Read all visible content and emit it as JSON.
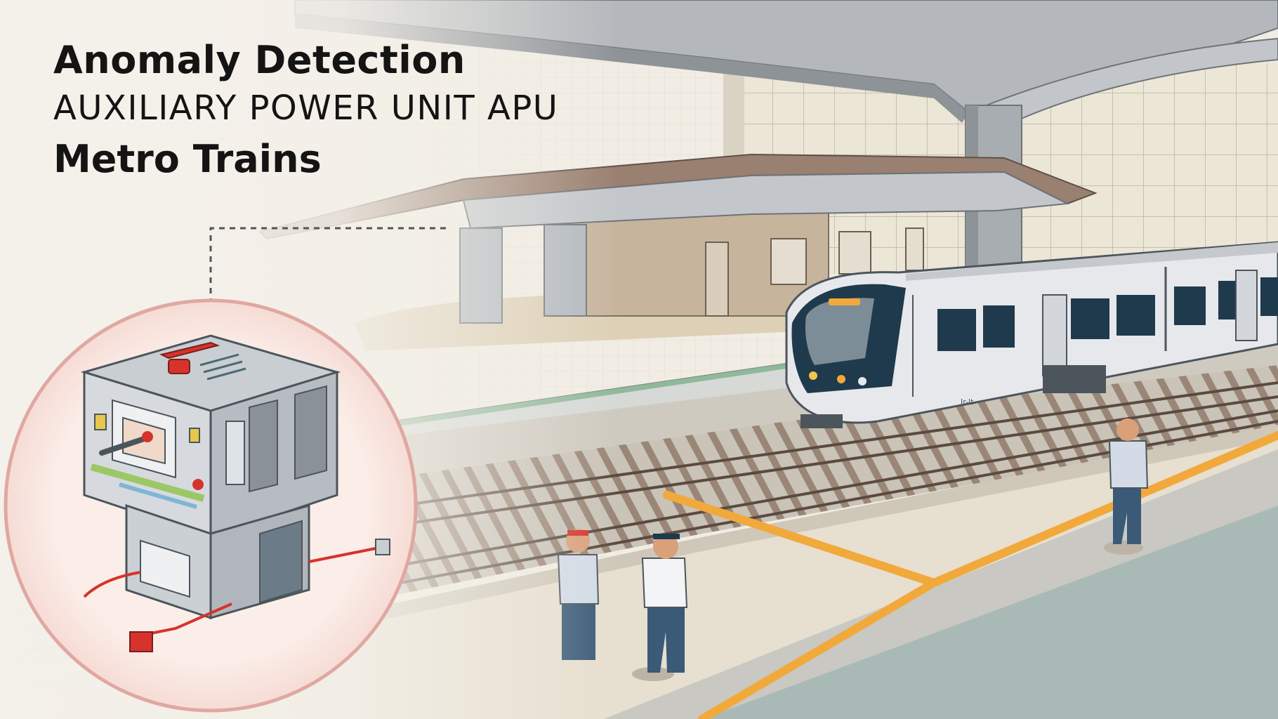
{
  "heading": {
    "title": "Anomaly Detection",
    "subtitle": "AUXILIARY POWER UNIT  APU",
    "category": "Metro Trains"
  },
  "train": {
    "side_marking": "Jr-lt"
  },
  "colors": {
    "background": "#f1ede4",
    "train_body": "#e6e8ec",
    "train_cab": "#1f3a4c",
    "tactile_line": "#f2a93b",
    "callout_ring": "#e0a8a2",
    "apu_accent": "#d6332c"
  }
}
